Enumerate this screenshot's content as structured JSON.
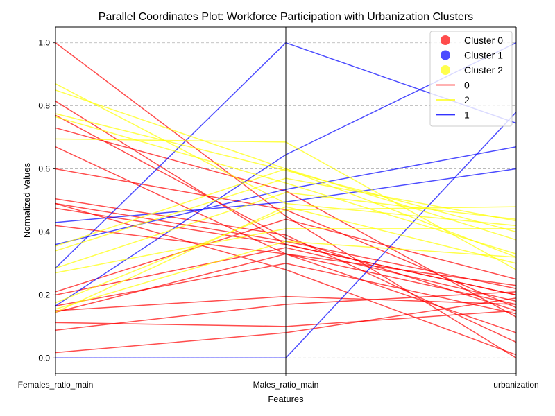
{
  "chart_data": {
    "type": "parallel_coordinates",
    "title": "Parallel Coordinates Plot: Workforce Participation with Urbanization Clusters",
    "xlabel": "Features",
    "ylabel": "Normalized Values",
    "features": [
      "Females_ratio_main",
      "Males_ratio_main",
      "urbanization"
    ],
    "ylim": [
      -0.05,
      1.05
    ],
    "yticks": [
      "0.0",
      "0.2",
      "0.4",
      "0.6",
      "0.8",
      "1.0"
    ],
    "grid": true,
    "legend_position": "top-right",
    "legend": [
      {
        "label": "Cluster 0",
        "marker": "circle",
        "color": "#ff0000"
      },
      {
        "label": "Cluster 1",
        "marker": "circle",
        "color": "#0000ff"
      },
      {
        "label": "Cluster 2",
        "marker": "circle",
        "color": "#ffff00"
      },
      {
        "label": "0",
        "marker": "line",
        "color": "#ff0000"
      },
      {
        "label": "2",
        "marker": "line",
        "color": "#ffff00"
      },
      {
        "label": "1",
        "marker": "line",
        "color": "#0000ff"
      }
    ],
    "colors": {
      "0": "#ff0000",
      "1": "#0000ff",
      "2": "#ffff00"
    },
    "series": [
      {
        "cluster": "0",
        "values": [
          1.0,
          0.45,
          0.0
        ]
      },
      {
        "cluster": "0",
        "values": [
          0.815,
          0.36,
          0.2
        ]
      },
      {
        "cluster": "0",
        "values": [
          0.77,
          0.38,
          0.15
        ]
      },
      {
        "cluster": "0",
        "values": [
          0.73,
          0.53,
          0.13
        ]
      },
      {
        "cluster": "0",
        "values": [
          0.67,
          0.33,
          0.08
        ]
      },
      {
        "cluster": "0",
        "values": [
          0.6,
          0.47,
          0.16
        ]
      },
      {
        "cluster": "0",
        "values": [
          0.505,
          0.39,
          0.05
        ]
      },
      {
        "cluster": "0",
        "values": [
          0.49,
          0.37,
          0.22
        ]
      },
      {
        "cluster": "0",
        "values": [
          0.475,
          0.36,
          0.2
        ]
      },
      {
        "cluster": "0",
        "values": [
          0.42,
          0.33,
          0.23
        ]
      },
      {
        "cluster": "0",
        "values": [
          0.21,
          0.44,
          0.25
        ]
      },
      {
        "cluster": "0",
        "values": [
          0.2,
          0.35,
          0.18
        ]
      },
      {
        "cluster": "0",
        "values": [
          0.165,
          0.3,
          0.14
        ]
      },
      {
        "cluster": "0",
        "values": [
          0.15,
          0.195,
          0.17
        ]
      },
      {
        "cluster": "0",
        "values": [
          0.112,
          0.1,
          0.15
        ]
      },
      {
        "cluster": "0",
        "values": [
          0.088,
          0.17,
          0.21
        ]
      },
      {
        "cluster": "0",
        "values": [
          0.017,
          0.08,
          0.19
        ]
      },
      {
        "cluster": "0",
        "values": [
          0.145,
          0.33,
          0.17
        ]
      },
      {
        "cluster": "0",
        "values": [
          0.49,
          0.28,
          0.01
        ]
      },
      {
        "cluster": "1",
        "values": [
          0.43,
          0.495,
          0.6
        ]
      },
      {
        "cluster": "1",
        "values": [
          0.36,
          0.535,
          0.67
        ]
      },
      {
        "cluster": "1",
        "values": [
          0.285,
          1.0,
          0.745
        ]
      },
      {
        "cluster": "1",
        "values": [
          0.165,
          0.645,
          1.0
        ]
      },
      {
        "cluster": "1",
        "values": [
          0.0,
          0.0,
          0.78
        ]
      },
      {
        "cluster": "2",
        "values": [
          0.87,
          0.49,
          0.42
        ]
      },
      {
        "cluster": "2",
        "values": [
          0.85,
          0.6,
          0.32
        ]
      },
      {
        "cluster": "2",
        "values": [
          0.775,
          0.595,
          0.4
        ]
      },
      {
        "cluster": "2",
        "values": [
          0.765,
          0.555,
          0.33
        ]
      },
      {
        "cluster": "2",
        "values": [
          0.695,
          0.685,
          0.28
        ]
      },
      {
        "cluster": "2",
        "values": [
          0.355,
          0.6,
          0.375
        ]
      },
      {
        "cluster": "2",
        "values": [
          0.34,
          0.57,
          0.435
        ]
      },
      {
        "cluster": "2",
        "values": [
          0.285,
          0.525,
          0.44
        ]
      },
      {
        "cluster": "2",
        "values": [
          0.27,
          0.41,
          0.41
        ]
      },
      {
        "cluster": "2",
        "values": [
          0.175,
          0.47,
          0.48
        ]
      },
      {
        "cluster": "2",
        "values": [
          0.155,
          0.37,
          0.32
        ]
      },
      {
        "cluster": "2",
        "values": [
          0.145,
          0.48,
          0.3
        ]
      }
    ]
  }
}
